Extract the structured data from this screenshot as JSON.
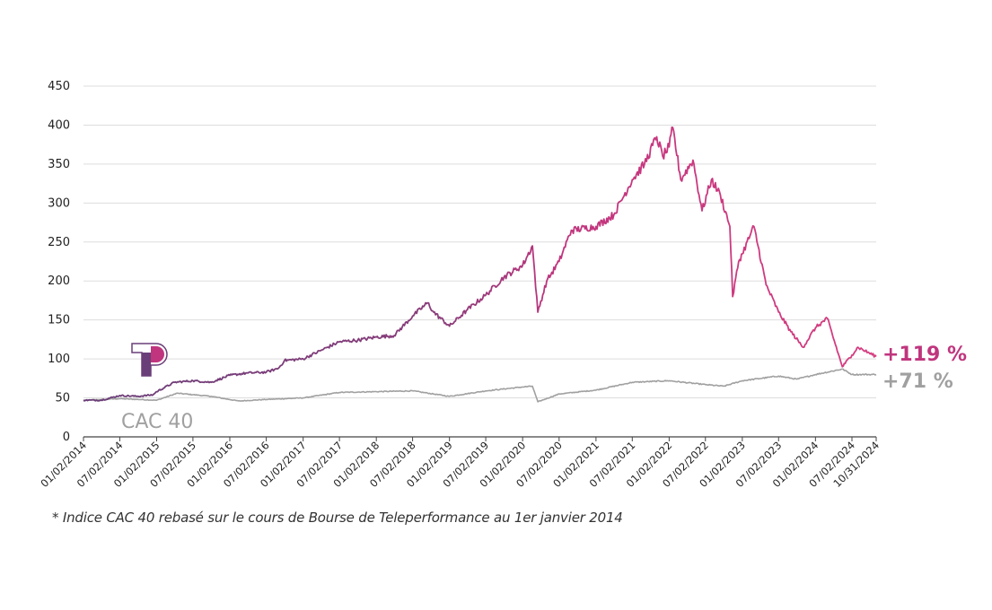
{
  "colors": {
    "teleperformance": "#c0357e",
    "teleperformance_early": "#6a3e78",
    "cac40": "#a0a0a0",
    "grid": "#dddddd",
    "axis": "#444444",
    "end_label_tp": "#c0357e",
    "end_label_cac": "#a0a0a0"
  },
  "labels": {
    "cac_series": "CAC 40",
    "tp_end": "+119 %",
    "cac_end": "+71 %",
    "footnote": "* Indice CAC 40 rebasé sur le cours de Bourse de Teleperformance au 1er janvier 2014"
  },
  "icons": {
    "legend": "teleperformance-logo-icon"
  },
  "chart_data": {
    "type": "line",
    "title": "",
    "xlabel": "",
    "ylabel": "",
    "ylim": [
      0,
      450
    ],
    "y_ticks": [
      "0",
      "50",
      "100",
      "150",
      "200",
      "250",
      "300",
      "350",
      "400",
      "450"
    ],
    "x_ticks": [
      "01/02/2014",
      "07/02/2014",
      "01/02/2015",
      "07/02/2015",
      "01/02/2016",
      "07/02/2016",
      "01/02/2017",
      "07/02/2017",
      "01/02/2018",
      "07/02/2018",
      "01/02/2019",
      "07/02/2019",
      "01/02/2020",
      "07/02/2020",
      "01/02/2021",
      "07/02/2021",
      "01/02/2022",
      "07/02/2022",
      "01/02/2023",
      "07/02/2023",
      "01/02/2024",
      "07/02/2024",
      "10/31/2024"
    ],
    "grid": true,
    "series": [
      {
        "name": "Teleperformance",
        "points": [
          [
            "01/02/2014",
            47
          ],
          [
            "04/01/2014",
            47
          ],
          [
            "07/02/2014",
            53
          ],
          [
            "10/01/2014",
            52
          ],
          [
            "12/15/2014",
            54
          ],
          [
            "01/02/2015",
            58
          ],
          [
            "04/01/2015",
            70
          ],
          [
            "07/02/2015",
            72
          ],
          [
            "10/01/2015",
            70
          ],
          [
            "01/02/2016",
            79
          ],
          [
            "04/01/2016",
            82
          ],
          [
            "07/02/2016",
            83
          ],
          [
            "09/01/2016",
            88
          ],
          [
            "10/01/2016",
            98
          ],
          [
            "01/02/2017",
            100
          ],
          [
            "04/01/2017",
            111
          ],
          [
            "07/02/2017",
            122
          ],
          [
            "10/01/2017",
            124
          ],
          [
            "01/02/2018",
            128
          ],
          [
            "04/01/2018",
            130
          ],
          [
            "07/02/2018",
            155
          ],
          [
            "09/15/2018",
            172
          ],
          [
            "10/15/2018",
            160
          ],
          [
            "01/02/2019",
            142
          ],
          [
            "04/01/2019",
            163
          ],
          [
            "07/02/2019",
            182
          ],
          [
            "10/01/2019",
            205
          ],
          [
            "01/02/2020",
            220
          ],
          [
            "02/20/2020",
            245
          ],
          [
            "03/18/2020",
            160
          ],
          [
            "05/01/2020",
            200
          ],
          [
            "07/02/2020",
            225
          ],
          [
            "09/01/2020",
            265
          ],
          [
            "01/02/2021",
            270
          ],
          [
            "04/01/2021",
            285
          ],
          [
            "07/02/2021",
            330
          ],
          [
            "09/01/2021",
            350
          ],
          [
            "11/01/2021",
            385
          ],
          [
            "12/01/2021",
            360
          ],
          [
            "01/02/2022",
            372
          ],
          [
            "01/20/2022",
            397
          ],
          [
            "03/01/2022",
            330
          ],
          [
            "05/01/2022",
            355
          ],
          [
            "06/15/2022",
            290
          ],
          [
            "08/01/2022",
            330
          ],
          [
            "09/15/2022",
            310
          ],
          [
            "11/01/2022",
            270
          ],
          [
            "11/15/2022",
            180
          ],
          [
            "12/15/2022",
            225
          ],
          [
            "01/02/2023",
            235
          ],
          [
            "03/01/2023",
            270
          ],
          [
            "05/01/2023",
            195
          ],
          [
            "07/02/2023",
            160
          ],
          [
            "09/01/2023",
            135
          ],
          [
            "11/01/2023",
            115
          ],
          [
            "01/02/2024",
            140
          ],
          [
            "03/01/2024",
            152
          ],
          [
            "05/15/2024",
            90
          ],
          [
            "07/02/2024",
            105
          ],
          [
            "08/01/2024",
            115
          ],
          [
            "10/31/2024",
            103
          ]
        ]
      },
      {
        "name": "CAC 40",
        "points": [
          [
            "01/02/2014",
            47
          ],
          [
            "07/02/2014",
            49
          ],
          [
            "01/02/2015",
            47
          ],
          [
            "04/15/2015",
            56
          ],
          [
            "10/01/2015",
            52
          ],
          [
            "02/15/2016",
            46
          ],
          [
            "07/02/2016",
            48
          ],
          [
            "01/02/2017",
            50
          ],
          [
            "07/02/2017",
            57
          ],
          [
            "01/02/2018",
            58
          ],
          [
            "07/02/2018",
            59
          ],
          [
            "01/02/2019",
            52
          ],
          [
            "07/02/2019",
            59
          ],
          [
            "01/02/2020",
            64
          ],
          [
            "02/20/2020",
            65
          ],
          [
            "03/18/2020",
            45
          ],
          [
            "07/02/2020",
            55
          ],
          [
            "01/02/2021",
            60
          ],
          [
            "07/02/2021",
            70
          ],
          [
            "01/02/2022",
            72
          ],
          [
            "07/02/2022",
            67
          ],
          [
            "10/01/2022",
            65
          ],
          [
            "01/02/2023",
            72
          ],
          [
            "07/02/2023",
            78
          ],
          [
            "10/01/2023",
            74
          ],
          [
            "01/02/2024",
            80
          ],
          [
            "05/15/2024",
            87
          ],
          [
            "07/02/2024",
            80
          ],
          [
            "10/31/2024",
            80
          ]
        ]
      }
    ]
  }
}
